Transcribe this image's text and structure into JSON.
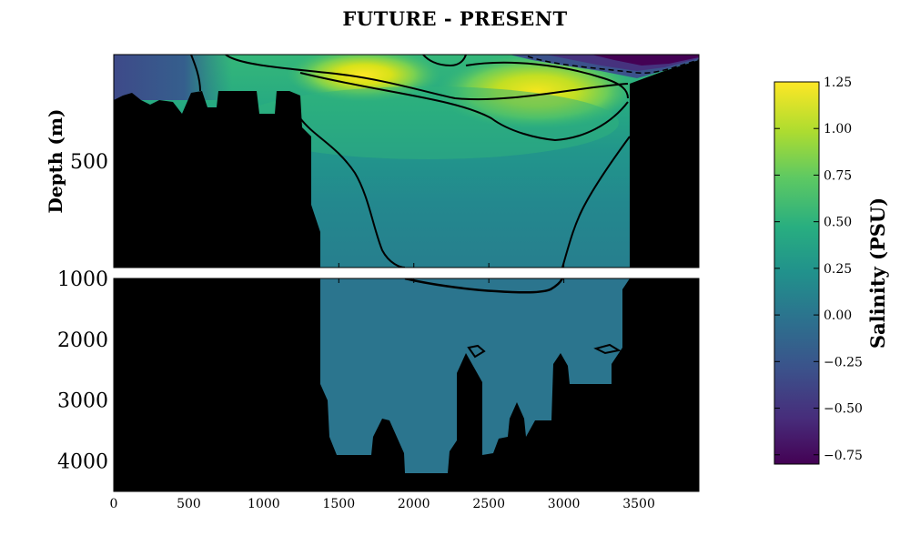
{
  "chart_data": {
    "type": "contour",
    "title": "FUTURE - PRESENT",
    "ylabel": "Depth (m)",
    "colorbar_label": "Salinity (PSU)",
    "colormap": "viridis",
    "x_ticks": [
      0,
      500,
      1000,
      1500,
      2000,
      2500,
      3000,
      3500
    ],
    "xlim": [
      0,
      3900
    ],
    "upper_panel": {
      "ylim": [
        0,
        1000
      ],
      "y_ticks": [
        500
      ],
      "invert_y": true
    },
    "lower_panel": {
      "ylim": [
        1000,
        4500
      ],
      "y_ticks": [
        1000,
        2000,
        3000,
        4000
      ],
      "invert_y": true
    },
    "colorbar": {
      "range": [
        -0.8,
        1.25
      ],
      "ticks": [
        1.25,
        1.0,
        0.75,
        0.5,
        0.25,
        0.0,
        -0.25,
        -0.5,
        -0.75
      ],
      "tick_labels": [
        "1.25",
        "1.00",
        "0.75",
        "0.50",
        "0.25",
        "0.00",
        "−0.25",
        "−0.50",
        "−0.75"
      ]
    },
    "field_regions": [
      {
        "region": "deep water",
        "value": 0.15
      },
      {
        "region": "upper 200 m maximum near x=1700",
        "value": 1.2
      },
      {
        "region": "upper 200 m maximum near x=2900",
        "value": 1.15
      },
      {
        "region": "surface minimum near x=3500",
        "value": -0.75
      },
      {
        "region": "surface near x=0-300",
        "value": -0.3
      }
    ],
    "contour_levels": [
      0.25,
      0.75,
      -0.25
    ],
    "grid": false
  }
}
